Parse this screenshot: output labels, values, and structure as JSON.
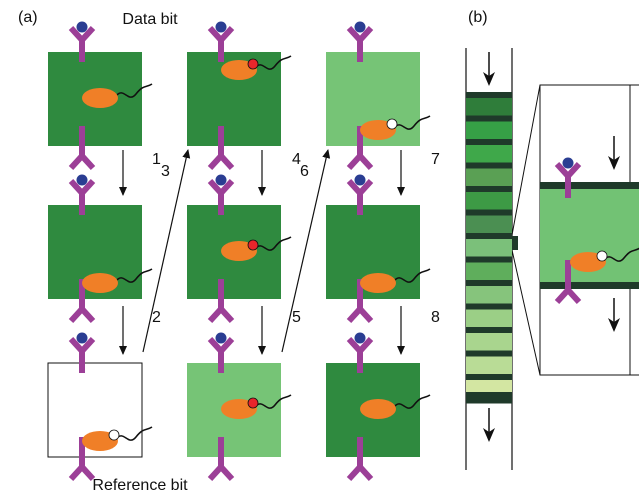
{
  "panel_a": {
    "label": "(a)",
    "top_label": "Data bit",
    "bottom_label": "Reference bit",
    "steps": [
      "1",
      "2",
      "3",
      "4",
      "5",
      "6",
      "7",
      "8"
    ]
  },
  "panel_b": {
    "label": "(b)"
  }
}
